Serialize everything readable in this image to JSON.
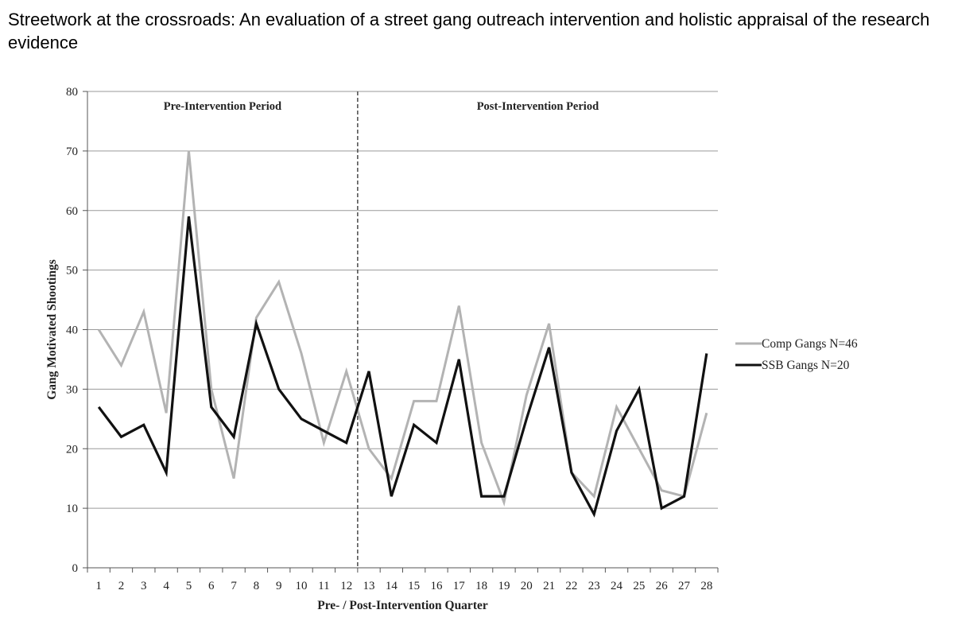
{
  "page": {
    "title": "Streetwork at the crossroads: An evaluation of a street gang outreach intervention and holistic appraisal of the research evidence"
  },
  "chart_data": {
    "type": "line",
    "xlabel": "Pre- / Post-Intervention Quarter",
    "ylabel": "Gang Motivated Shootings",
    "x": [
      1,
      2,
      3,
      4,
      5,
      6,
      7,
      8,
      9,
      10,
      11,
      12,
      13,
      14,
      15,
      16,
      17,
      18,
      19,
      20,
      21,
      22,
      23,
      24,
      25,
      26,
      27,
      28
    ],
    "ylim": [
      0,
      80
    ],
    "yticks": [
      0,
      10,
      20,
      30,
      40,
      50,
      60,
      70,
      80
    ],
    "grid": "horizontal",
    "legend_position": "right",
    "intervention_line": {
      "x": 12.5,
      "style": "dashed"
    },
    "period_labels": [
      {
        "text": "Pre-Intervention Period",
        "x_center": 6.5
      },
      {
        "text": "Post-Intervention Period",
        "x_center": 20.5
      }
    ],
    "series": [
      {
        "name": "Comp Gangs N=46",
        "color": "#b3b3b3",
        "values": [
          40,
          34,
          43,
          26,
          70,
          30,
          15,
          42,
          48,
          36,
          21,
          33,
          20,
          15,
          28,
          28,
          44,
          21,
          11,
          29,
          41,
          16,
          12,
          27,
          20,
          13,
          12,
          26
        ]
      },
      {
        "name": "SSB Gangs N=20",
        "color": "#111111",
        "values": [
          27,
          22,
          24,
          16,
          59,
          27,
          22,
          41,
          30,
          25,
          23,
          21,
          33,
          12,
          24,
          21,
          35,
          12,
          12,
          25,
          37,
          16,
          9,
          23,
          30,
          10,
          12,
          36
        ]
      }
    ]
  }
}
